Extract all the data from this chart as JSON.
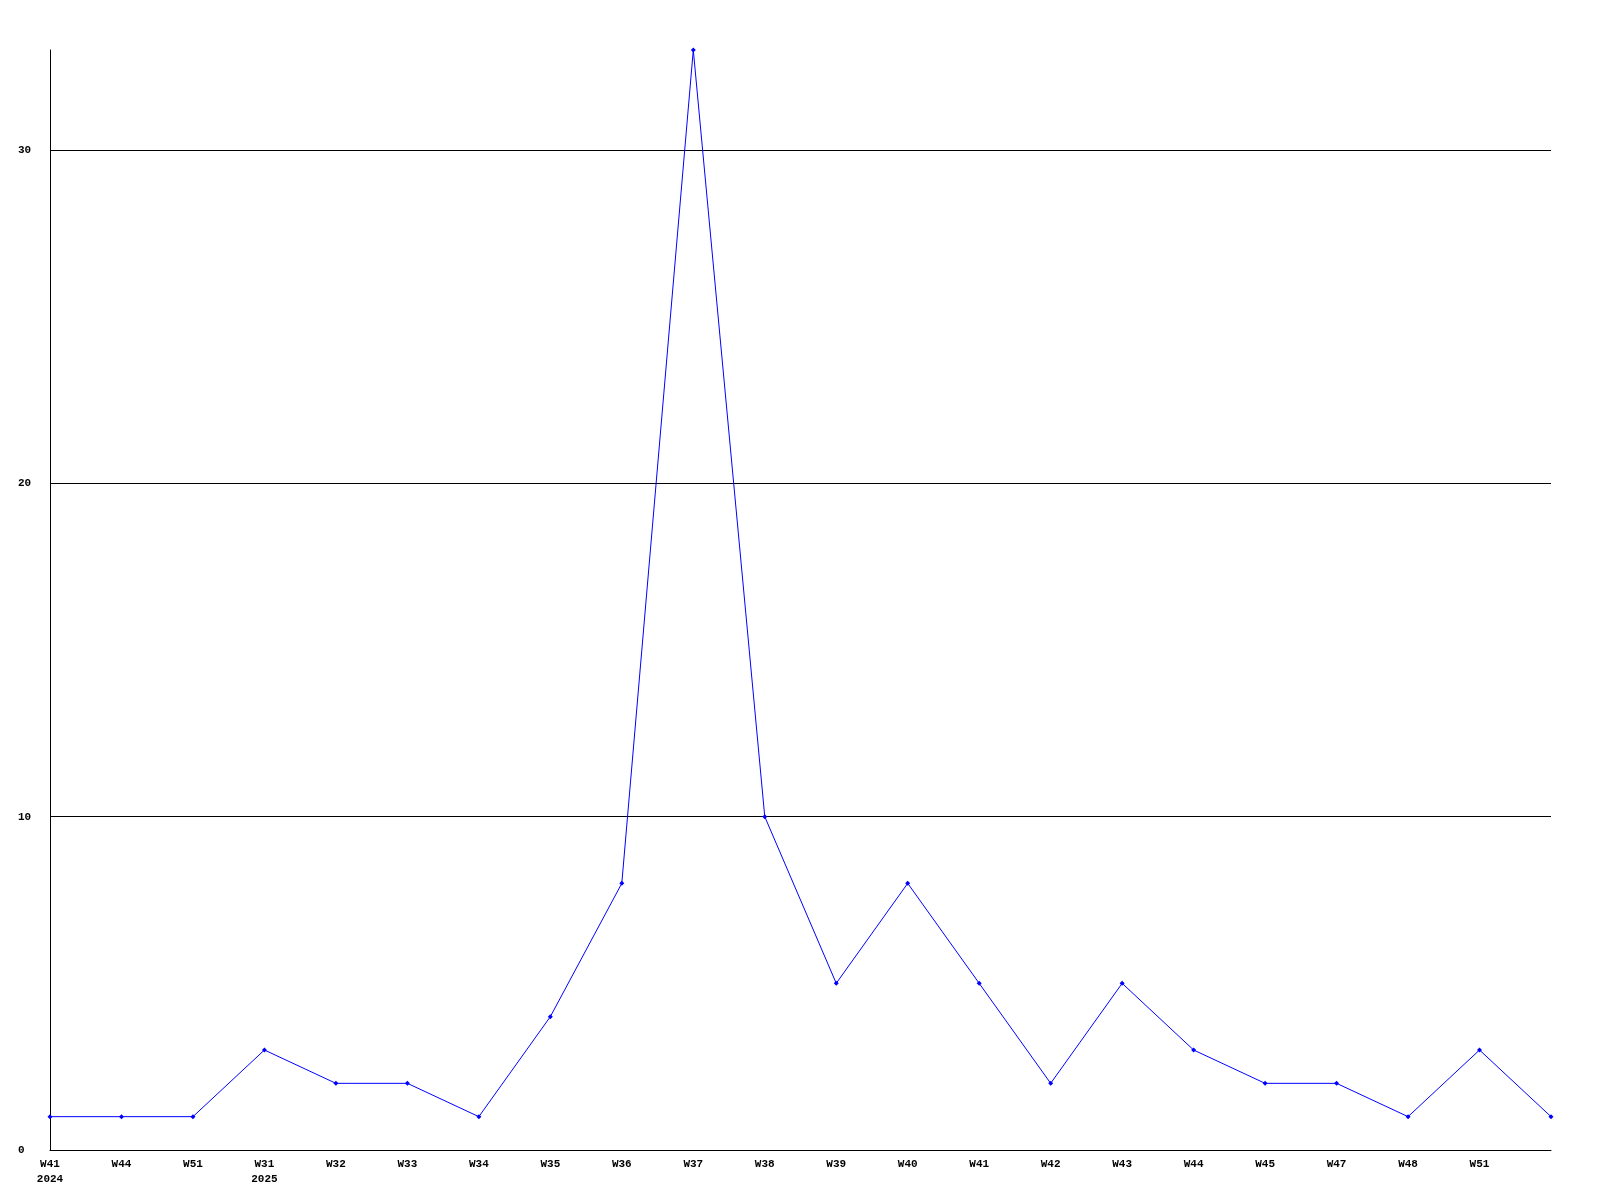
{
  "chart_data": {
    "type": "line",
    "categories": [
      "W41\n2024",
      "W44",
      "W51",
      "W31\n2025",
      "W32",
      "W33",
      "W34",
      "W35",
      "W36",
      "W37",
      "W38",
      "W39",
      "W40",
      "W41",
      "W42",
      "W43",
      "W44",
      "W45",
      "W47",
      "W48",
      "W51",
      null
    ],
    "series": [
      {
        "color": "#0000ff",
        "values": [
          1,
          1,
          1,
          3,
          2,
          2,
          1,
          4,
          8,
          33,
          10,
          5,
          8,
          5,
          2,
          5,
          3,
          2,
          2,
          1,
          3,
          1
        ]
      }
    ],
    "ylim": [
      0,
      33
    ],
    "yticks": [
      0,
      10,
      20,
      30
    ],
    "grid": "y",
    "marker": "diamond",
    "line_style": "solid"
  }
}
